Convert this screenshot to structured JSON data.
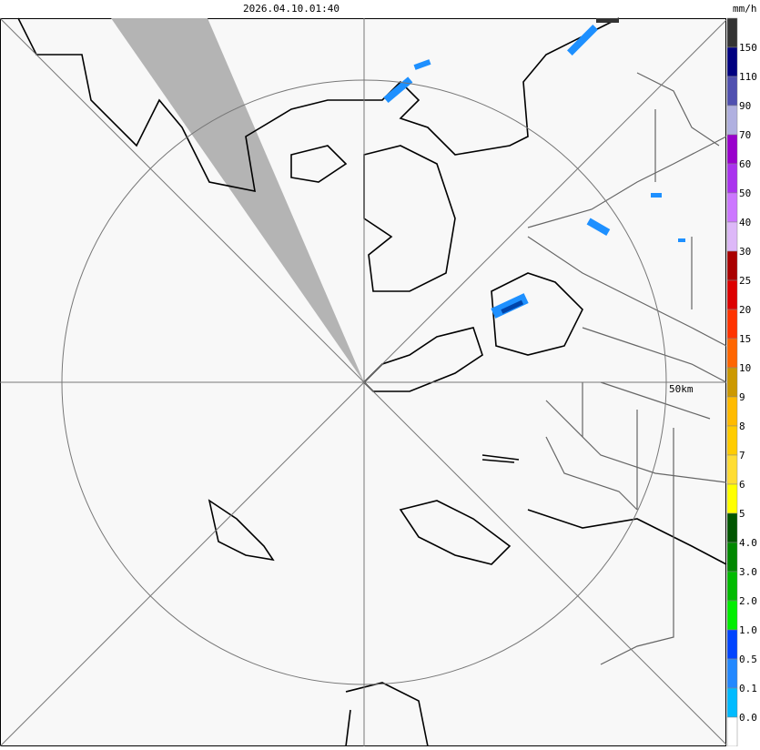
{
  "header": {
    "timestamp": "2026.04.10.01:40",
    "unit": "mm/h"
  },
  "map": {
    "range_label": "50km"
  },
  "legend": {
    "colors": [
      "#333333",
      "#000080",
      "#5050b0",
      "#b0b0e0",
      "#9900cc",
      "#aa33ee",
      "#cc77ff",
      "#ddb8f8",
      "#aa0000",
      "#dd0000",
      "#ff3300",
      "#ff6600",
      "#cc9900",
      "#ffbb00",
      "#ffcc00",
      "#ffdd33",
      "#ffff00",
      "#005500",
      "#008800",
      "#00bb00",
      "#00ee00",
      "#0044ff",
      "#2288ff",
      "#00bbff",
      "#ffffff"
    ],
    "labels": [
      "150",
      "110",
      "90",
      "70",
      "60",
      "50",
      "40",
      "30",
      "25",
      "20",
      "15",
      "10",
      "9",
      "8",
      "7",
      "6",
      "5",
      "4.0",
      "3.0",
      "2.0",
      "1.0",
      "0.5",
      "0.1",
      "0.0"
    ]
  }
}
